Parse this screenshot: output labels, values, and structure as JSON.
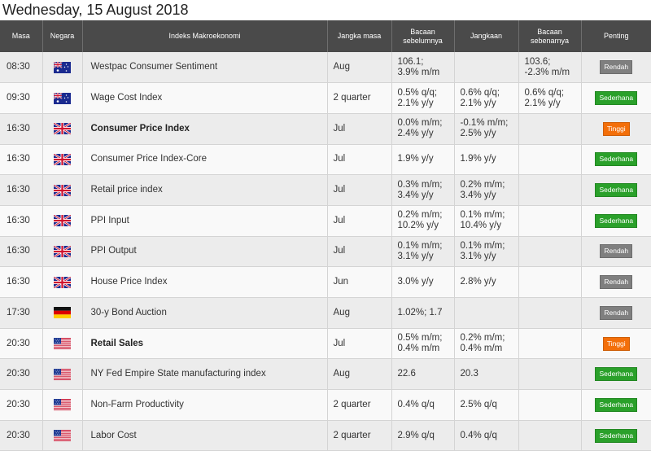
{
  "page": {
    "date": "Wednesday, 15 August 2018"
  },
  "colors": {
    "header_bg": "#4a4a4a",
    "low": "#7f7f7f",
    "medium": "#2aa02a",
    "high": "#f36f0a"
  },
  "columns": {
    "time": "Masa",
    "country": "Negara",
    "indicator": "Indeks Makroekonomi",
    "period": "Jangka masa",
    "previous": "Bacaan sebelumnya",
    "forecast": "Jangkaan",
    "actual": "Bacaan sebenarnya",
    "importance": "Penting"
  },
  "rows": [
    {
      "time": "08:30",
      "flag": "australia-flag-icon",
      "indicator": "Westpac Consumer Sentiment",
      "bold": false,
      "period": "Aug",
      "previous": "106.1;\n3.9% m/m",
      "forecast": "",
      "actual": "103.6;\n-2.3% m/m",
      "importance": "Rendah",
      "level": "low"
    },
    {
      "time": "09:30",
      "flag": "australia-flag-icon",
      "indicator": "Wage Cost Index",
      "bold": false,
      "period": "2 quarter",
      "previous": "0.5% q/q;\n2.1% y/y",
      "forecast": "0.6% q/q;\n2.1% y/y",
      "actual": "0.6% q/q;\n2.1% y/y",
      "importance": "Sederhana",
      "level": "med"
    },
    {
      "time": "16:30",
      "flag": "uk-flag-icon",
      "indicator": "Consumer Price Index",
      "bold": true,
      "period": "Jul",
      "previous": "0.0% m/m;\n2.4% y/y",
      "forecast": "-0.1% m/m;\n2.5% y/y",
      "actual": "",
      "importance": "Tinggi",
      "level": "high"
    },
    {
      "time": "16:30",
      "flag": "uk-flag-icon",
      "indicator": "Consumer Price Index-Core",
      "bold": false,
      "period": "Jul",
      "previous": "1.9% y/y",
      "forecast": "1.9% y/y",
      "actual": "",
      "importance": "Sederhana",
      "level": "med"
    },
    {
      "time": "16:30",
      "flag": "uk-flag-icon",
      "indicator": "Retail price index",
      "bold": false,
      "period": "Jul",
      "previous": "0.3% m/m;\n3.4% y/y",
      "forecast": "0.2% m/m;\n3.4% y/y",
      "actual": "",
      "importance": "Sederhana",
      "level": "med"
    },
    {
      "time": "16:30",
      "flag": "uk-flag-icon",
      "indicator": "PPI Input",
      "bold": false,
      "period": "Jul",
      "previous": "0.2% m/m;\n10.2% y/y",
      "forecast": "0.1% m/m;\n10.4% y/y",
      "actual": "",
      "importance": "Sederhana",
      "level": "med"
    },
    {
      "time": "16:30",
      "flag": "uk-flag-icon",
      "indicator": "PPI Output",
      "bold": false,
      "period": "Jul",
      "previous": "0.1% m/m;\n3.1% y/y",
      "forecast": "0.1% m/m;\n3.1% y/y",
      "actual": "",
      "importance": "Rendah",
      "level": "low"
    },
    {
      "time": "16:30",
      "flag": "uk-flag-icon",
      "indicator": "House Price Index",
      "bold": false,
      "period": "Jun",
      "previous": "3.0% y/y",
      "forecast": "2.8% y/y",
      "actual": "",
      "importance": "Rendah",
      "level": "low"
    },
    {
      "time": "17:30",
      "flag": "germany-flag-icon",
      "indicator": "30-y Bond Auction",
      "bold": false,
      "period": "Aug",
      "previous": "1.02%; 1.7",
      "forecast": "",
      "actual": "",
      "importance": "Rendah",
      "level": "low"
    },
    {
      "time": "20:30",
      "flag": "usa-flag-icon",
      "indicator": "Retail Sales",
      "bold": true,
      "period": "Jul",
      "previous": "0.5% m/m;\n0.4% m/m",
      "forecast": "0.2% m/m;\n0.4% m/m",
      "actual": "",
      "importance": "Tinggi",
      "level": "high"
    },
    {
      "time": "20:30",
      "flag": "usa-flag-icon",
      "indicator": "NY Fed Empire State manufacturing index",
      "bold": false,
      "period": "Aug",
      "previous": "22.6",
      "forecast": "20.3",
      "actual": "",
      "importance": "Sederhana",
      "level": "med"
    },
    {
      "time": "20:30",
      "flag": "usa-flag-icon",
      "indicator": "Non-Farm Productivity",
      "bold": false,
      "period": "2 quarter",
      "previous": "0.4% q/q",
      "forecast": "2.5% q/q",
      "actual": "",
      "importance": "Sederhana",
      "level": "med"
    },
    {
      "time": "20:30",
      "flag": "usa-flag-icon",
      "indicator": "Labor Cost",
      "bold": false,
      "period": "2 quarter",
      "previous": "2.9% q/q",
      "forecast": "0.4% q/q",
      "actual": "",
      "importance": "Sederhana",
      "level": "med"
    }
  ]
}
